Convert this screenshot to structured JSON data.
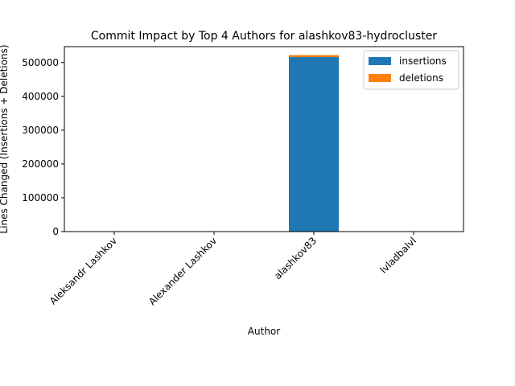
{
  "chart_data": {
    "type": "bar",
    "stacked": true,
    "title": "Commit Impact by Top 4 Authors for alashkov83-hydrocluster",
    "xlabel": "Author",
    "ylabel": "Lines Changed (Insertions + Deletions)",
    "categories": [
      "Aleksandr Lashkov",
      "Alexander Lashkov",
      "alashkov83",
      "lvladbalvl"
    ],
    "series": [
      {
        "name": "insertions",
        "color": "#1f77b4",
        "values": [
          0,
          0,
          516000,
          0
        ]
      },
      {
        "name": "deletions",
        "color": "#ff7f0e",
        "values": [
          0,
          0,
          6000,
          0
        ]
      }
    ],
    "ylim": [
      0,
      547000
    ],
    "yticks": [
      0,
      100000,
      200000,
      300000,
      400000,
      500000
    ],
    "grid": false,
    "legend_position": "top-right"
  }
}
